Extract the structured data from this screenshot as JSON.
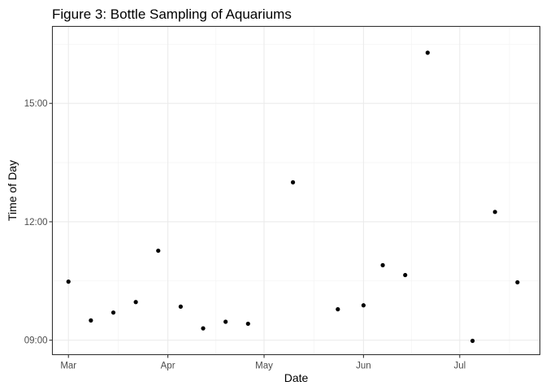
{
  "chart_data": {
    "type": "scatter",
    "title": "Figure 3: Bottle Sampling of Aquariums",
    "xlabel": "Date",
    "ylabel": "Time of Day",
    "x_axis": {
      "kind": "date",
      "range": [
        "2023-02-24",
        "2023-07-26"
      ],
      "ticks": [
        {
          "value": "2023-03-01",
          "label": "Mar"
        },
        {
          "value": "2023-04-01",
          "label": "Apr"
        },
        {
          "value": "2023-05-01",
          "label": "May"
        },
        {
          "value": "2023-06-01",
          "label": "Jun"
        },
        {
          "value": "2023-07-01",
          "label": "Jul"
        }
      ]
    },
    "y_axis": {
      "kind": "time",
      "range": [
        "08:38",
        "16:57"
      ],
      "ticks": [
        {
          "value": "09:00",
          "label": "09:00"
        },
        {
          "value": "12:00",
          "label": "12:00"
        },
        {
          "value": "15:00",
          "label": "15:00"
        }
      ]
    },
    "grid": true,
    "points": [
      {
        "x": "2023-03-01",
        "y": "10:29"
      },
      {
        "x": "2023-03-08",
        "y": "09:30"
      },
      {
        "x": "2023-03-15",
        "y": "09:42"
      },
      {
        "x": "2023-03-22",
        "y": "09:58"
      },
      {
        "x": "2023-03-29",
        "y": "11:16"
      },
      {
        "x": "2023-04-05",
        "y": "09:51"
      },
      {
        "x": "2023-04-12",
        "y": "09:18"
      },
      {
        "x": "2023-04-19",
        "y": "09:28"
      },
      {
        "x": "2023-04-26",
        "y": "09:25"
      },
      {
        "x": "2023-05-10",
        "y": "13:00"
      },
      {
        "x": "2023-05-24",
        "y": "09:47"
      },
      {
        "x": "2023-06-01",
        "y": "09:53"
      },
      {
        "x": "2023-06-07",
        "y": "10:54"
      },
      {
        "x": "2023-06-14",
        "y": "10:39"
      },
      {
        "x": "2023-06-21",
        "y": "16:17"
      },
      {
        "x": "2023-07-05",
        "y": "08:59"
      },
      {
        "x": "2023-07-12",
        "y": "12:15"
      },
      {
        "x": "2023-07-19",
        "y": "10:28"
      }
    ]
  }
}
